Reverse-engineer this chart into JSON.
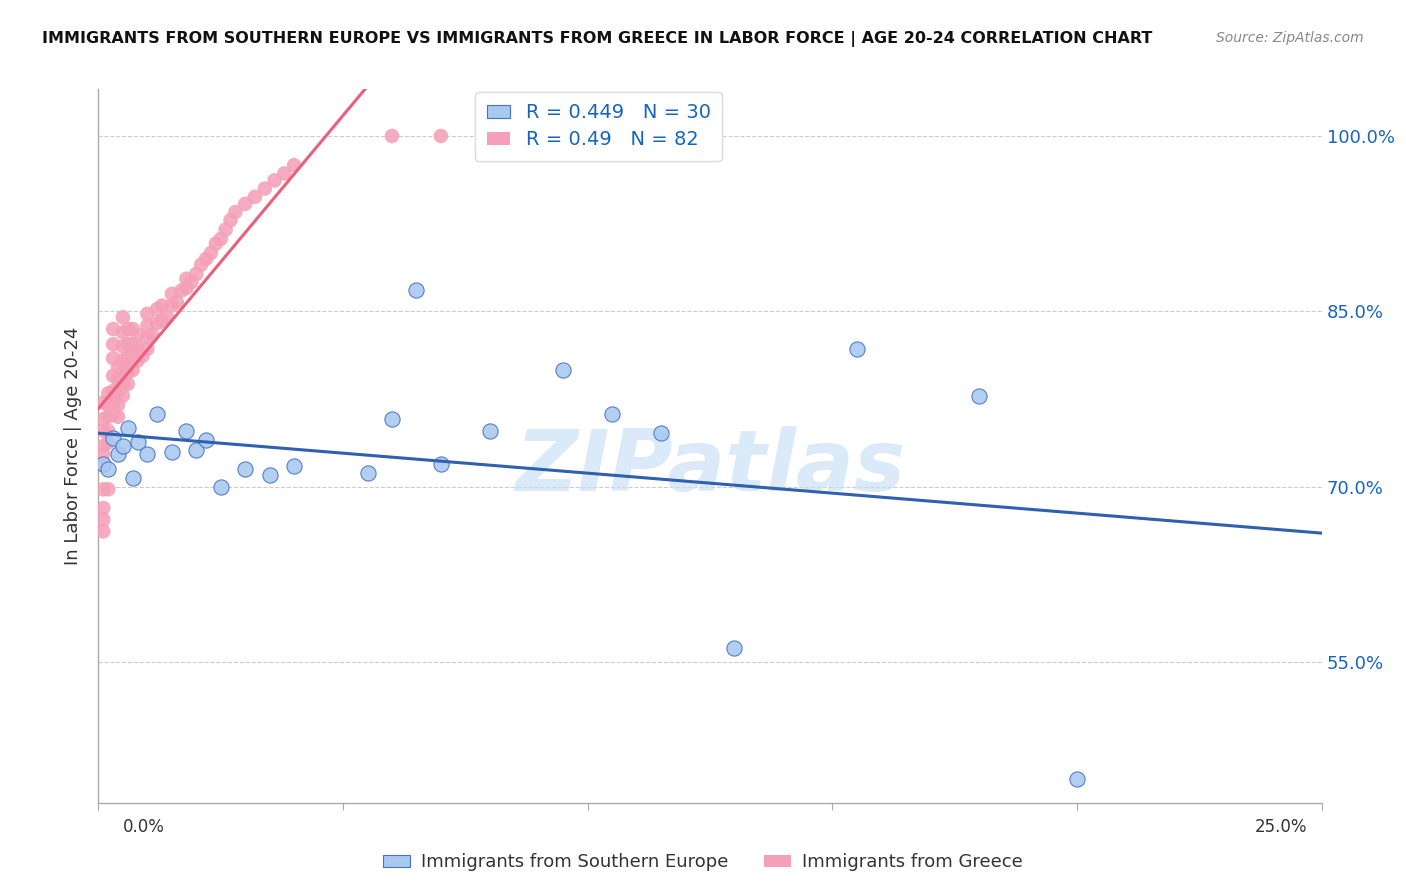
{
  "title": "IMMIGRANTS FROM SOUTHERN EUROPE VS IMMIGRANTS FROM GREECE IN LABOR FORCE | AGE 20-24 CORRELATION CHART",
  "source": "Source: ZipAtlas.com",
  "ylabel": "In Labor Force | Age 20-24",
  "xmin": 0.0,
  "xmax": 0.25,
  "ymin": 0.43,
  "ymax": 1.04,
  "blue_R": 0.449,
  "blue_N": 30,
  "pink_R": 0.49,
  "pink_N": 82,
  "blue_color": "#a8c8f0",
  "pink_color": "#f4a0b8",
  "blue_edge_color": "#4472c4",
  "pink_line_color": "#e8607a",
  "blue_line_color": "#3060b0",
  "legend_label_blue": "Immigrants from Southern Europe",
  "legend_label_pink": "Immigrants from Greece",
  "watermark": "ZIPatlas",
  "ytick_vals": [
    0.55,
    0.7,
    0.85,
    1.0
  ],
  "ytick_labels": [
    "55.0%",
    "70.0%",
    "85.0%",
    "100.0%"
  ],
  "blue_x": [
    0.001,
    0.002,
    0.003,
    0.004,
    0.005,
    0.006,
    0.007,
    0.008,
    0.01,
    0.012,
    0.015,
    0.018,
    0.02,
    0.022,
    0.025,
    0.03,
    0.035,
    0.04,
    0.055,
    0.06,
    0.065,
    0.07,
    0.08,
    0.095,
    0.105,
    0.115,
    0.13,
    0.155,
    0.18,
    0.2
  ],
  "blue_y": [
    0.72,
    0.715,
    0.742,
    0.728,
    0.735,
    0.75,
    0.708,
    0.738,
    0.728,
    0.762,
    0.73,
    0.748,
    0.732,
    0.74,
    0.7,
    0.715,
    0.71,
    0.718,
    0.712,
    0.758,
    0.868,
    0.72,
    0.748,
    0.8,
    0.762,
    0.746,
    0.562,
    0.818,
    0.778,
    0.45
  ],
  "pink_x": [
    0.001,
    0.001,
    0.001,
    0.001,
    0.001,
    0.001,
    0.001,
    0.001,
    0.001,
    0.001,
    0.002,
    0.002,
    0.002,
    0.002,
    0.002,
    0.002,
    0.003,
    0.003,
    0.003,
    0.003,
    0.003,
    0.003,
    0.003,
    0.004,
    0.004,
    0.004,
    0.004,
    0.004,
    0.005,
    0.005,
    0.005,
    0.005,
    0.005,
    0.005,
    0.005,
    0.006,
    0.006,
    0.006,
    0.006,
    0.006,
    0.007,
    0.007,
    0.007,
    0.007,
    0.008,
    0.008,
    0.008,
    0.009,
    0.01,
    0.01,
    0.01,
    0.01,
    0.011,
    0.012,
    0.012,
    0.013,
    0.013,
    0.014,
    0.015,
    0.015,
    0.016,
    0.017,
    0.018,
    0.018,
    0.019,
    0.02,
    0.021,
    0.022,
    0.023,
    0.024,
    0.025,
    0.026,
    0.027,
    0.028,
    0.03,
    0.032,
    0.034,
    0.036,
    0.038,
    0.04,
    0.06,
    0.07
  ],
  "pink_y": [
    0.72,
    0.728,
    0.735,
    0.748,
    0.758,
    0.772,
    0.698,
    0.682,
    0.672,
    0.662,
    0.738,
    0.748,
    0.76,
    0.77,
    0.78,
    0.698,
    0.762,
    0.772,
    0.782,
    0.795,
    0.81,
    0.822,
    0.835,
    0.76,
    0.77,
    0.782,
    0.792,
    0.802,
    0.778,
    0.788,
    0.798,
    0.808,
    0.82,
    0.832,
    0.845,
    0.788,
    0.798,
    0.81,
    0.822,
    0.835,
    0.8,
    0.812,
    0.822,
    0.835,
    0.808,
    0.82,
    0.83,
    0.812,
    0.818,
    0.828,
    0.838,
    0.848,
    0.83,
    0.84,
    0.852,
    0.842,
    0.855,
    0.845,
    0.855,
    0.865,
    0.858,
    0.868,
    0.87,
    0.878,
    0.875,
    0.882,
    0.89,
    0.895,
    0.9,
    0.908,
    0.912,
    0.92,
    0.928,
    0.935,
    0.942,
    0.948,
    0.955,
    0.962,
    0.968,
    0.975,
    1.0,
    1.0
  ]
}
